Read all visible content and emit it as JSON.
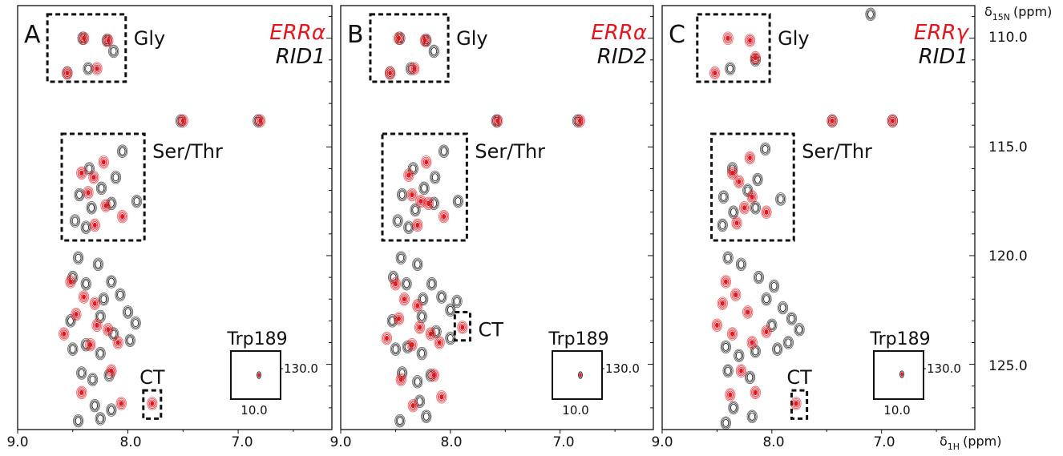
{
  "chart_data": [
    {
      "type": "scatter",
      "panel_letter": "A",
      "legend": [
        {
          "text": "ERRα",
          "color": "#e8141c"
        },
        {
          "text": "RID1",
          "color": "#111111"
        }
      ],
      "boxes": [
        {
          "label": "Gly",
          "x": [
            8.73,
            8.02
          ],
          "y": [
            108.9,
            112.0
          ]
        },
        {
          "label": "Ser/Thr",
          "x": [
            8.6,
            7.85
          ],
          "y": [
            114.4,
            119.3
          ]
        },
        {
          "label": "CT",
          "x": [
            7.86,
            7.7
          ],
          "y": [
            126.2,
            127.5
          ]
        }
      ],
      "inset": {
        "label": "Trp189",
        "x_tick": "10.0",
        "y_tick": "130.0",
        "peaks": [
          {
            "x": 7.1,
            "y": 130.7
          }
        ]
      },
      "red_peaks": [
        {
          "x": 8.4,
          "y": 110.0
        },
        {
          "x": 8.18,
          "y": 110.1
        },
        {
          "x": 8.55,
          "y": 111.6
        },
        {
          "x": 8.28,
          "y": 111.4
        },
        {
          "x": 7.5,
          "y": 113.8
        },
        {
          "x": 6.8,
          "y": 113.8
        },
        {
          "x": 8.22,
          "y": 115.7
        },
        {
          "x": 8.42,
          "y": 116.2
        },
        {
          "x": 8.31,
          "y": 116.4
        },
        {
          "x": 8.36,
          "y": 117.1
        },
        {
          "x": 8.2,
          "y": 117.7
        },
        {
          "x": 8.05,
          "y": 118.2
        },
        {
          "x": 8.3,
          "y": 118.6
        },
        {
          "x": 8.52,
          "y": 121.2
        },
        {
          "x": 8.4,
          "y": 121.9
        },
        {
          "x": 8.3,
          "y": 122.2
        },
        {
          "x": 8.47,
          "y": 122.7
        },
        {
          "x": 8.28,
          "y": 123.2
        },
        {
          "x": 8.18,
          "y": 123.4
        },
        {
          "x": 8.58,
          "y": 123.6
        },
        {
          "x": 8.34,
          "y": 124.1
        },
        {
          "x": 8.09,
          "y": 124.0
        },
        {
          "x": 8.42,
          "y": 126.3
        },
        {
          "x": 8.15,
          "y": 125.3
        },
        {
          "x": 8.06,
          "y": 126.8
        },
        {
          "x": 7.78,
          "y": 126.8
        }
      ],
      "black_peaks": [
        {
          "x": 8.41,
          "y": 110.0
        },
        {
          "x": 8.19,
          "y": 110.1
        },
        {
          "x": 8.13,
          "y": 110.6
        },
        {
          "x": 8.55,
          "y": 111.6
        },
        {
          "x": 8.36,
          "y": 111.4
        },
        {
          "x": 7.52,
          "y": 113.8
        },
        {
          "x": 6.82,
          "y": 113.8
        },
        {
          "x": 8.05,
          "y": 115.2
        },
        {
          "x": 8.35,
          "y": 116.0
        },
        {
          "x": 8.11,
          "y": 116.4
        },
        {
          "x": 8.24,
          "y": 116.9
        },
        {
          "x": 8.44,
          "y": 117.2
        },
        {
          "x": 8.15,
          "y": 117.6
        },
        {
          "x": 7.92,
          "y": 117.5
        },
        {
          "x": 8.33,
          "y": 117.8
        },
        {
          "x": 8.48,
          "y": 118.4
        },
        {
          "x": 8.38,
          "y": 118.7
        },
        {
          "x": 8.45,
          "y": 120.1
        },
        {
          "x": 8.27,
          "y": 120.4
        },
        {
          "x": 8.5,
          "y": 121.0
        },
        {
          "x": 8.38,
          "y": 121.3
        },
        {
          "x": 8.15,
          "y": 121.2
        },
        {
          "x": 8.07,
          "y": 121.8
        },
        {
          "x": 8.22,
          "y": 122.0
        },
        {
          "x": 8.0,
          "y": 122.6
        },
        {
          "x": 7.93,
          "y": 123.1
        },
        {
          "x": 8.25,
          "y": 122.8
        },
        {
          "x": 8.52,
          "y": 123.0
        },
        {
          "x": 8.13,
          "y": 123.6
        },
        {
          "x": 7.98,
          "y": 123.9
        },
        {
          "x": 8.38,
          "y": 124.1
        },
        {
          "x": 8.25,
          "y": 124.5
        },
        {
          "x": 8.5,
          "y": 124.3
        },
        {
          "x": 8.42,
          "y": 125.4
        },
        {
          "x": 8.32,
          "y": 125.7
        },
        {
          "x": 8.17,
          "y": 125.5
        },
        {
          "x": 8.3,
          "y": 126.9
        },
        {
          "x": 8.45,
          "y": 127.6
        },
        {
          "x": 8.25,
          "y": 127.5
        },
        {
          "x": 8.15,
          "y": 127.1
        }
      ]
    },
    {
      "type": "scatter",
      "panel_letter": "B",
      "legend": [
        {
          "text": "ERRα",
          "color": "#e8141c"
        },
        {
          "text": "RID2",
          "color": "#111111"
        }
      ],
      "boxes": [
        {
          "label": "Gly",
          "x": [
            8.73,
            8.02
          ],
          "y": [
            108.9,
            112.0
          ]
        },
        {
          "label": "Ser/Thr",
          "x": [
            8.62,
            7.85
          ],
          "y": [
            114.4,
            119.3
          ]
        },
        {
          "label": "CT",
          "x": [
            7.96,
            7.82
          ],
          "y": [
            122.6,
            123.9
          ]
        }
      ],
      "inset": {
        "label": "Trp189",
        "x_tick": "10.0",
        "y_tick": "130.0",
        "peaks": [
          {
            "x": 7.1,
            "y": 130.7
          }
        ]
      },
      "red_peaks": [
        {
          "x": 8.47,
          "y": 110.0
        },
        {
          "x": 8.23,
          "y": 110.1
        },
        {
          "x": 8.55,
          "y": 111.6
        },
        {
          "x": 8.33,
          "y": 111.4
        },
        {
          "x": 7.57,
          "y": 113.8
        },
        {
          "x": 6.82,
          "y": 113.8
        },
        {
          "x": 8.22,
          "y": 115.7
        },
        {
          "x": 8.38,
          "y": 116.3
        },
        {
          "x": 8.35,
          "y": 117.2
        },
        {
          "x": 8.27,
          "y": 117.5
        },
        {
          "x": 8.2,
          "y": 117.6
        },
        {
          "x": 8.06,
          "y": 118.2
        },
        {
          "x": 8.3,
          "y": 118.6
        },
        {
          "x": 8.5,
          "y": 121.3
        },
        {
          "x": 8.42,
          "y": 122.0
        },
        {
          "x": 8.3,
          "y": 122.3
        },
        {
          "x": 8.47,
          "y": 122.9
        },
        {
          "x": 8.28,
          "y": 123.3
        },
        {
          "x": 8.18,
          "y": 123.6
        },
        {
          "x": 8.58,
          "y": 123.8
        },
        {
          "x": 8.35,
          "y": 124.1
        },
        {
          "x": 8.1,
          "y": 124.0
        },
        {
          "x": 8.45,
          "y": 125.7
        },
        {
          "x": 8.15,
          "y": 125.5
        },
        {
          "x": 8.08,
          "y": 126.5
        },
        {
          "x": 7.89,
          "y": 123.3
        },
        {
          "x": 8.34,
          "y": 126.9
        }
      ],
      "black_peaks": [
        {
          "x": 8.46,
          "y": 110.0
        },
        {
          "x": 8.22,
          "y": 110.1
        },
        {
          "x": 8.15,
          "y": 110.6
        },
        {
          "x": 8.55,
          "y": 111.6
        },
        {
          "x": 8.36,
          "y": 111.4
        },
        {
          "x": 7.58,
          "y": 113.8
        },
        {
          "x": 6.84,
          "y": 113.8
        },
        {
          "x": 8.06,
          "y": 115.2
        },
        {
          "x": 8.34,
          "y": 116.0
        },
        {
          "x": 8.14,
          "y": 116.4
        },
        {
          "x": 8.24,
          "y": 116.9
        },
        {
          "x": 8.44,
          "y": 117.2
        },
        {
          "x": 8.15,
          "y": 117.6
        },
        {
          "x": 7.93,
          "y": 117.5
        },
        {
          "x": 8.32,
          "y": 117.9
        },
        {
          "x": 8.48,
          "y": 118.4
        },
        {
          "x": 8.38,
          "y": 118.7
        },
        {
          "x": 8.45,
          "y": 120.1
        },
        {
          "x": 8.3,
          "y": 120.4
        },
        {
          "x": 8.52,
          "y": 121.0
        },
        {
          "x": 8.4,
          "y": 121.3
        },
        {
          "x": 8.17,
          "y": 121.3
        },
        {
          "x": 8.08,
          "y": 121.9
        },
        {
          "x": 8.25,
          "y": 122.0
        },
        {
          "x": 8.0,
          "y": 122.5
        },
        {
          "x": 7.94,
          "y": 122.1
        },
        {
          "x": 8.26,
          "y": 122.8
        },
        {
          "x": 8.53,
          "y": 123.0
        },
        {
          "x": 8.13,
          "y": 123.5
        },
        {
          "x": 8.0,
          "y": 123.8
        },
        {
          "x": 8.39,
          "y": 124.2
        },
        {
          "x": 8.26,
          "y": 124.5
        },
        {
          "x": 8.5,
          "y": 124.3
        },
        {
          "x": 8.44,
          "y": 125.4
        },
        {
          "x": 8.3,
          "y": 125.8
        },
        {
          "x": 8.18,
          "y": 125.5
        },
        {
          "x": 8.28,
          "y": 126.7
        },
        {
          "x": 8.46,
          "y": 127.6
        },
        {
          "x": 8.22,
          "y": 127.4
        }
      ]
    },
    {
      "type": "scatter",
      "panel_letter": "C",
      "legend": [
        {
          "text": "ERRγ",
          "color": "#e8141c"
        },
        {
          "text": "RID1",
          "color": "#111111"
        }
      ],
      "boxes": [
        {
          "label": "Gly",
          "x": [
            8.68,
            8.02
          ],
          "y": [
            108.9,
            112.0
          ]
        },
        {
          "label": "Ser/Thr",
          "x": [
            8.55,
            7.8
          ],
          "y": [
            114.4,
            119.3
          ]
        },
        {
          "label": "CT",
          "x": [
            7.82,
            7.68
          ],
          "y": [
            126.2,
            127.5
          ]
        }
      ],
      "inset": {
        "label": "Trp189",
        "x_tick": "10.0",
        "y_tick": "130.0",
        "peaks": [
          {
            "x": 7.1,
            "y": 130.6
          }
        ]
      },
      "red_peaks": [
        {
          "x": 8.4,
          "y": 110.0
        },
        {
          "x": 8.2,
          "y": 110.1
        },
        {
          "x": 8.52,
          "y": 111.6
        },
        {
          "x": 8.15,
          "y": 110.9
        },
        {
          "x": 7.45,
          "y": 113.8
        },
        {
          "x": 6.9,
          "y": 113.8
        },
        {
          "x": 8.2,
          "y": 115.5
        },
        {
          "x": 8.36,
          "y": 116.2
        },
        {
          "x": 8.3,
          "y": 116.6
        },
        {
          "x": 8.18,
          "y": 117.3
        },
        {
          "x": 8.25,
          "y": 117.8
        },
        {
          "x": 8.05,
          "y": 118.0
        },
        {
          "x": 8.32,
          "y": 118.5
        },
        {
          "x": 8.42,
          "y": 121.2
        },
        {
          "x": 8.33,
          "y": 121.8
        },
        {
          "x": 8.45,
          "y": 122.2
        },
        {
          "x": 8.22,
          "y": 122.6
        },
        {
          "x": 8.5,
          "y": 123.2
        },
        {
          "x": 8.36,
          "y": 123.6
        },
        {
          "x": 8.18,
          "y": 124.0
        },
        {
          "x": 8.05,
          "y": 123.5
        },
        {
          "x": 8.28,
          "y": 125.3
        },
        {
          "x": 8.38,
          "y": 126.4
        },
        {
          "x": 8.15,
          "y": 126.3
        },
        {
          "x": 7.78,
          "y": 126.8
        }
      ],
      "black_peaks": [
        {
          "x": 8.38,
          "y": 111.4
        },
        {
          "x": 8.15,
          "y": 111.0
        },
        {
          "x": 7.45,
          "y": 113.8
        },
        {
          "x": 6.9,
          "y": 113.8
        },
        {
          "x": 7.1,
          "y": 108.9
        },
        {
          "x": 8.06,
          "y": 115.1
        },
        {
          "x": 8.36,
          "y": 116.0
        },
        {
          "x": 8.13,
          "y": 116.5
        },
        {
          "x": 8.22,
          "y": 117.0
        },
        {
          "x": 8.44,
          "y": 117.3
        },
        {
          "x": 8.15,
          "y": 117.8
        },
        {
          "x": 7.92,
          "y": 117.4
        },
        {
          "x": 8.35,
          "y": 118.0
        },
        {
          "x": 8.45,
          "y": 118.6
        },
        {
          "x": 8.4,
          "y": 120.1
        },
        {
          "x": 8.28,
          "y": 120.4
        },
        {
          "x": 8.12,
          "y": 121.0
        },
        {
          "x": 7.98,
          "y": 121.4
        },
        {
          "x": 8.05,
          "y": 122.0
        },
        {
          "x": 7.9,
          "y": 122.4
        },
        {
          "x": 7.82,
          "y": 122.9
        },
        {
          "x": 7.75,
          "y": 123.4
        },
        {
          "x": 8.0,
          "y": 123.2
        },
        {
          "x": 7.85,
          "y": 124.0
        },
        {
          "x": 8.15,
          "y": 124.4
        },
        {
          "x": 7.95,
          "y": 124.3
        },
        {
          "x": 8.42,
          "y": 124.2
        },
        {
          "x": 8.3,
          "y": 124.6
        },
        {
          "x": 8.4,
          "y": 125.3
        },
        {
          "x": 8.2,
          "y": 125.6
        },
        {
          "x": 8.35,
          "y": 127.0
        },
        {
          "x": 8.42,
          "y": 127.7
        },
        {
          "x": 8.18,
          "y": 127.4
        }
      ]
    }
  ],
  "axes": {
    "x_ticks": [
      "9.0",
      "8.0",
      "7.0",
      "9.0",
      "8.0",
      "7.0",
      "9.0",
      "8.0",
      "7.0"
    ],
    "y_ticks": [
      "110.0",
      "115.0",
      "120.0",
      "125.0"
    ],
    "x_label_symbol": "δ",
    "x_label_sub": "1H",
    "x_label_unit": "(ppm)",
    "y_label_symbol": "δ",
    "y_label_sub": "15N",
    "y_label_unit": "(ppm)",
    "x_range": [
      9.0,
      6.15
    ],
    "y_range": [
      108.5,
      128.0
    ]
  },
  "colors": {
    "red": "#e8141c",
    "black": "#111111"
  }
}
